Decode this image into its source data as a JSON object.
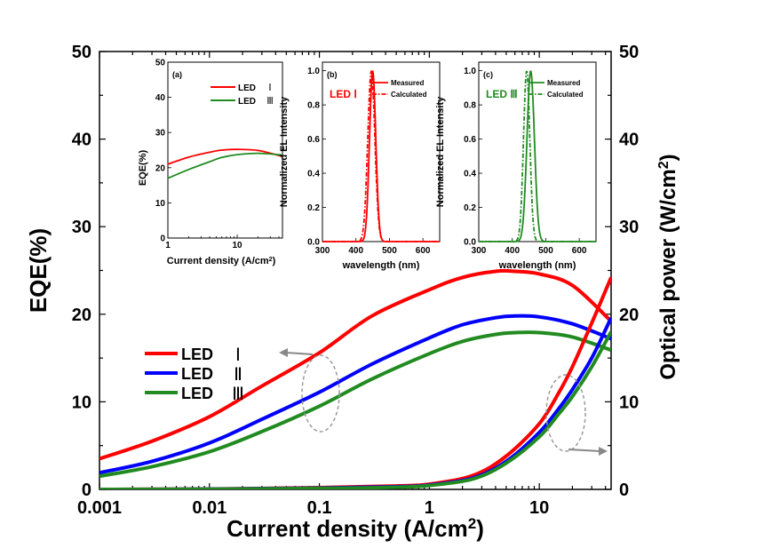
{
  "chart_data": [
    {
      "type": "line",
      "id": "main",
      "xlabel": "Current density (A/cm",
      "xlabel_sup": "2",
      "xlabel_tail": ")",
      "ylabel": "EQE(%)",
      "y2label": "Optical power (W/cm",
      "y2label_sup": "2",
      "y2label_tail": ")",
      "xscale": "log",
      "xlim": [
        0.001,
        45
      ],
      "ylim": [
        0,
        50
      ],
      "y2lim": [
        0,
        50
      ],
      "xticks": [
        "0.001",
        "0.01",
        "0.1",
        "1",
        "10"
      ],
      "yticks": [
        "0",
        "10",
        "20",
        "30",
        "40",
        "50"
      ],
      "y2ticks": [
        "0",
        "10",
        "20",
        "30",
        "40",
        "50"
      ],
      "legend": [
        {
          "name": "LED",
          "numeral": "Ⅰ",
          "color": "#ff0000"
        },
        {
          "name": "LED",
          "numeral": "Ⅱ",
          "color": "#0000ff"
        },
        {
          "name": "LED",
          "numeral": "Ⅲ",
          "color": "#218b21"
        }
      ],
      "series": [
        {
          "group": "EQE",
          "color": "#ff0000",
          "x": [
            0.001,
            0.003,
            0.01,
            0.03,
            0.1,
            0.3,
            1,
            2,
            4,
            6,
            10,
            20,
            45
          ],
          "y": [
            3.5,
            5.5,
            8.3,
            11.8,
            15.6,
            19.8,
            22.8,
            24.2,
            24.9,
            24.9,
            24.6,
            23.3,
            19.2
          ]
        },
        {
          "group": "EQE",
          "color": "#0000ff",
          "x": [
            0.001,
            0.003,
            0.01,
            0.03,
            0.1,
            0.3,
            1,
            2,
            4,
            6,
            10,
            20,
            45
          ],
          "y": [
            1.9,
            3.2,
            5.3,
            8.0,
            11.1,
            14.3,
            17.3,
            18.8,
            19.6,
            19.8,
            19.7,
            18.9,
            17.2
          ]
        },
        {
          "group": "EQE",
          "color": "#218b21",
          "x": [
            0.001,
            0.003,
            0.01,
            0.03,
            0.1,
            0.3,
            1,
            2,
            4,
            6,
            10,
            20,
            45
          ],
          "y": [
            1.5,
            2.6,
            4.3,
            6.6,
            9.5,
            12.6,
            15.5,
            16.9,
            17.7,
            17.9,
            17.9,
            17.4,
            15.9
          ]
        },
        {
          "group": "Optical power",
          "color": "#ff0000",
          "x": [
            0.001,
            0.01,
            0.1,
            0.5,
            1,
            2.5,
            5,
            10,
            15,
            20,
            30,
            45
          ],
          "y": [
            0.0,
            0.05,
            0.2,
            0.4,
            0.6,
            1.6,
            3.8,
            7.5,
            11.0,
            14.0,
            19.0,
            24.2
          ]
        },
        {
          "group": "Optical power",
          "color": "#0000ff",
          "x": [
            0.001,
            0.01,
            0.1,
            0.5,
            1,
            2.5,
            5,
            10,
            15,
            20,
            30,
            45
          ],
          "y": [
            0.0,
            0.04,
            0.15,
            0.3,
            0.5,
            1.3,
            3.2,
            6.5,
            9.2,
            11.4,
            15.0,
            19.6
          ]
        },
        {
          "group": "Optical power",
          "color": "#218b21",
          "x": [
            0.001,
            0.01,
            0.1,
            0.5,
            1,
            2.5,
            5,
            10,
            15,
            20,
            30,
            45
          ],
          "y": [
            0.0,
            0.03,
            0.12,
            0.25,
            0.45,
            1.2,
            3.0,
            6.0,
            8.6,
            10.6,
            14.0,
            18.0
          ]
        }
      ]
    },
    {
      "type": "line",
      "id": "inset-a",
      "panel_label": "(a)",
      "xlabel": "Current density (A/cm",
      "xlabel_sup": "2",
      "xlabel_tail": ")",
      "ylabel": "EQE(%)",
      "xscale": "log",
      "xlim": [
        1,
        45
      ],
      "ylim": [
        0,
        50
      ],
      "xticks": [
        "1",
        "10"
      ],
      "yticks": [
        "0",
        "10",
        "20",
        "30",
        "40",
        "50"
      ],
      "legend": [
        {
          "name": "LED",
          "numeral": "Ⅰ",
          "color": "#ff0000"
        },
        {
          "name": "LED",
          "numeral": "Ⅲ",
          "color": "#218b21"
        }
      ],
      "series": [
        {
          "color": "#ff0000",
          "x": [
            1,
            2,
            4,
            6,
            10,
            20,
            45
          ],
          "y": [
            21.0,
            23.0,
            24.4,
            25.0,
            25.2,
            24.9,
            23.2
          ]
        },
        {
          "color": "#218b21",
          "x": [
            1,
            2,
            4,
            6,
            10,
            20,
            45
          ],
          "y": [
            17.0,
            19.5,
            21.7,
            22.9,
            23.7,
            24.1,
            23.6
          ]
        }
      ]
    },
    {
      "type": "line",
      "id": "inset-b",
      "panel_label": "(b)",
      "sample_label": "LED Ⅰ",
      "sample_color": "#ff0000",
      "xlabel": "wavelength (nm)",
      "ylabel": "Normalized EL Intensity",
      "xlim": [
        300,
        650
      ],
      "ylim": [
        0,
        1.05
      ],
      "xticks": [
        "300",
        "400",
        "500",
        "600"
      ],
      "yticks": [
        "0.0",
        "0.2",
        "0.4",
        "0.6",
        "0.8",
        "1.0"
      ],
      "legend": [
        {
          "name": "Measured",
          "style": "solid",
          "color": "#ff0000"
        },
        {
          "name": "Calculated",
          "style": "dashdot",
          "color": "#ff0000"
        }
      ],
      "peak_measured": 450,
      "fwhm_measured": 22,
      "peak_calculated": 446,
      "fwhm_calculated": 25
    },
    {
      "type": "line",
      "id": "inset-c",
      "panel_label": "(c)",
      "sample_label": "LED Ⅲ",
      "sample_color": "#218b21",
      "xlabel": "wavelength (nm)",
      "ylabel": "Normalized EL Intensity",
      "xlim": [
        300,
        650
      ],
      "ylim": [
        0,
        1.05
      ],
      "xticks": [
        "300",
        "400",
        "500",
        "600"
      ],
      "yticks": [
        "0.0",
        "0.2",
        "0.4",
        "0.6",
        "0.8",
        "1.0"
      ],
      "legend": [
        {
          "name": "Measured",
          "style": "solid",
          "color": "#218b21"
        },
        {
          "name": "Calculated",
          "style": "dashdot",
          "color": "#218b21"
        }
      ],
      "peak_measured": 455,
      "fwhm_measured": 26,
      "peak_calculated": 443,
      "fwhm_calculated": 22
    }
  ]
}
